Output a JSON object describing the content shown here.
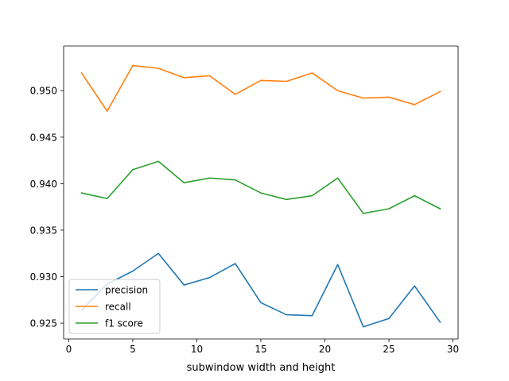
{
  "chart_data": {
    "type": "line",
    "title": "",
    "xlabel": "subwindow width and height",
    "ylabel": "",
    "xlim": [
      -0.4,
      30.4
    ],
    "ylim": [
      0.9233,
      0.9548
    ],
    "x_ticks": [
      0,
      5,
      10,
      15,
      20,
      25,
      30
    ],
    "x_tick_labels": [
      "0",
      "5",
      "10",
      "15",
      "20",
      "25",
      "30"
    ],
    "y_ticks": [
      0.925,
      0.93,
      0.935,
      0.94,
      0.945,
      0.95
    ],
    "y_tick_labels": [
      "0.925",
      "0.930",
      "0.935",
      "0.940",
      "0.945",
      "0.950"
    ],
    "grid": false,
    "legend_position": "lower-left",
    "x": [
      1,
      3,
      5,
      7,
      9,
      11,
      13,
      15,
      17,
      19,
      21,
      23,
      25,
      27,
      29
    ],
    "series": [
      {
        "name": "precision",
        "color": "#1f77b4",
        "values": [
          0.9264,
          0.9292,
          0.9306,
          0.9325,
          0.9291,
          0.9299,
          0.9314,
          0.9272,
          0.9259,
          0.9258,
          0.9313,
          0.9246,
          0.9255,
          0.929,
          0.9251
        ]
      },
      {
        "name": "recall",
        "color": "#ff7f0e",
        "values": [
          0.9519,
          0.9478,
          0.9527,
          0.9524,
          0.9514,
          0.9516,
          0.9496,
          0.9511,
          0.951,
          0.9519,
          0.95,
          0.9492,
          0.9493,
          0.9485,
          0.9499
        ]
      },
      {
        "name": "f1 score",
        "color": "#2ca02c",
        "values": [
          0.939,
          0.9384,
          0.9415,
          0.9424,
          0.9401,
          0.9406,
          0.9404,
          0.939,
          0.9383,
          0.9387,
          0.9406,
          0.9368,
          0.9373,
          0.9387,
          0.9373
        ]
      }
    ]
  }
}
